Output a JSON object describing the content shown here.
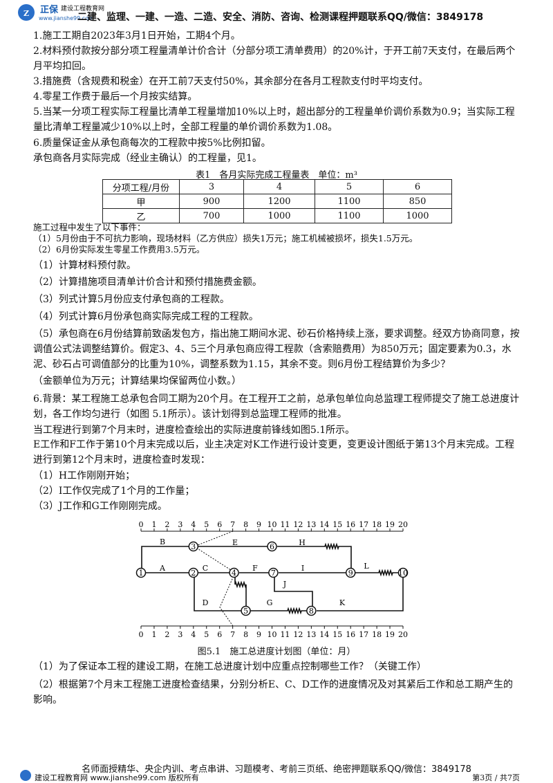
{
  "header": {
    "brand": "正保",
    "brand_sub": "建设工程教育网",
    "url": "www.jianshe99.com",
    "text": "二建、监理、一建、一造、二造、安全、消防、咨询、检测课程押题联系QQ/微信：3849178"
  },
  "paragraphs": [
    "1.施工工期自2023年3月1日开始，工期4个月。",
    "2.材料预付款按分部分项工程量清单计价合计（分部分项工清单费用）的20%计，于开工前7天支付，在最后两个月平均扣回。",
    "3.措施费（含规费和税金）在开工前7天支付50%，其余部分在各月工程款支付时平均支付。",
    "4.零星工作费于最后一个月按实结算。",
    "5.当某一分项工程实际工程量比清单工程量增加10%以上时，超出部分的工程量单价调价系数为0.9；当实际工程量比清单工程量减少10%以上时，全部工程量的单价调价系数为1.08。",
    "6.质量保证金从承包商每次的工程款中按5%比例扣留。",
    "承包商各月实际完成（经业主确认）的工程量，见1。"
  ],
  "table": {
    "caption": "表1　各月实际完成工程量表　单位：m³",
    "rows": [
      [
        "分项工程/月份",
        "3",
        "4",
        "5",
        "6"
      ],
      [
        "甲",
        "900",
        "1200",
        "1100",
        "850"
      ],
      [
        "乙",
        "700",
        "1000",
        "1100",
        "1000"
      ]
    ]
  },
  "events": [
    "施工过程中发生了以下事件：",
    "（1）5月份由于不可抗力影响，现场材料（乙方供应）损失1万元；施工机械被损坏，损失1.5万元。",
    "（2）6月份实际发生零星工作费用3.5万元。"
  ],
  "questions": [
    "（1）计算材料预付款。",
    "（2）计算措施项目清单计价合计和预付措施费金额。",
    "（3）列式计算5月份应支付承包商的工程款。",
    "（4）列式计算6月份承包商实际完成工程的工程款。",
    "（5）承包商在6月份结算前致函发包方，指出施工期间水泥、砂石价格持续上涨，要求调整。经双方协商同意，按调值公式法调整结算价。假定3、4、5三个月承包商应得工程款（含索赔费用）为850万元；固定要素为0.3，水泥、砂石占可调值部分的比重为10%，调整系数为1.15，其余不变。则6月份工程结算价为多少？",
    "（金额单位为万元；计算结果均保留两位小数。）"
  ],
  "background": [
    "6.背景：某工程施工总承包合同工期为20个月。在工程开工之前，总承包单位向总监理工程师提交了施工总进度计划，各工作均匀进行（如图 5.1所示）。该计划得到总监理工程师的批准。",
    "当工程进行到第7个月末时，进度检查绘出的实际进度前锋线如图5.1所示。",
    "E工作和F工作于第10个月末完成以后，业主决定对K工作进行设计变更，变更设计图纸于第13个月末完成。工程进行到第12个月末时，进度检查时发现：",
    "（1）H工作刚刚开始；",
    "（2）I工作仅完成了1个月的工作量；",
    "（3）J工作和G工作刚刚完成。"
  ],
  "diagram": {
    "scale": [
      "0",
      "1",
      "2",
      "3",
      "4",
      "5",
      "6",
      "7",
      "8",
      "9",
      "10",
      "11",
      "12",
      "13",
      "14",
      "15",
      "16",
      "17",
      "18",
      "19",
      "20"
    ],
    "nodes": [
      "1",
      "2",
      "3",
      "4",
      "5",
      "6",
      "7",
      "8",
      "9",
      "10"
    ],
    "activities": [
      "A",
      "B",
      "C",
      "D",
      "E",
      "F",
      "G",
      "H",
      "I",
      "J",
      "K",
      "L"
    ],
    "caption": "图5.1　施工总进度计划图（单位：月）"
  },
  "final_questions": [
    "（1）为了保证本工程的建设工期，在施工总进度计划中应重点控制哪些工作？（关键工作）",
    "（2）根据第7个月末工程施工进度检查结果，分别分析E、C、D工作的进度情况及对其紧后工作和总工期产生的影响。"
  ],
  "footer": {
    "text": "名师面授精华、央企内训、考点串讲、习题模考、考前三页纸、绝密押题联系QQ/微信：3849178",
    "copyright": "建设工程教育网 www.jianshe99.com 版权所有",
    "page": "第3页 / 共7页"
  }
}
